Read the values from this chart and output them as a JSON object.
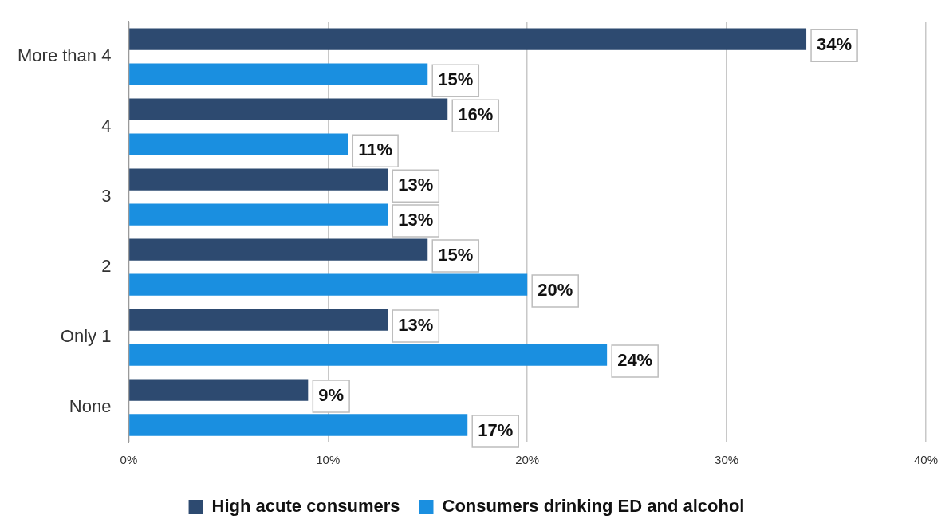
{
  "chart_data": {
    "type": "bar",
    "orientation": "horizontal",
    "categories": [
      "More than 4",
      "4",
      "3",
      "2",
      "Only 1",
      "None"
    ],
    "series": [
      {
        "name": "High acute consumers",
        "color": "#2d4a70",
        "values": [
          34,
          16,
          13,
          15,
          13,
          9
        ],
        "value_labels": [
          "34%",
          "16%",
          "13%",
          "15%",
          "13%",
          "9%"
        ]
      },
      {
        "name": "Consumers drinking ED and alcohol",
        "color": "#1a8fe0",
        "values": [
          15,
          11,
          13,
          20,
          24,
          17
        ],
        "value_labels": [
          "15%",
          "11%",
          "13%",
          "20%",
          "24%",
          "17%"
        ]
      }
    ],
    "xlim": [
      0,
      40
    ],
    "xticks": [
      {
        "value": 0,
        "label": "0%"
      },
      {
        "value": 10,
        "label": "10%"
      },
      {
        "value": 20,
        "label": "20%"
      },
      {
        "value": 30,
        "label": "30%"
      },
      {
        "value": 40,
        "label": "40%"
      }
    ],
    "grid": "x",
    "legend": "bottom"
  }
}
